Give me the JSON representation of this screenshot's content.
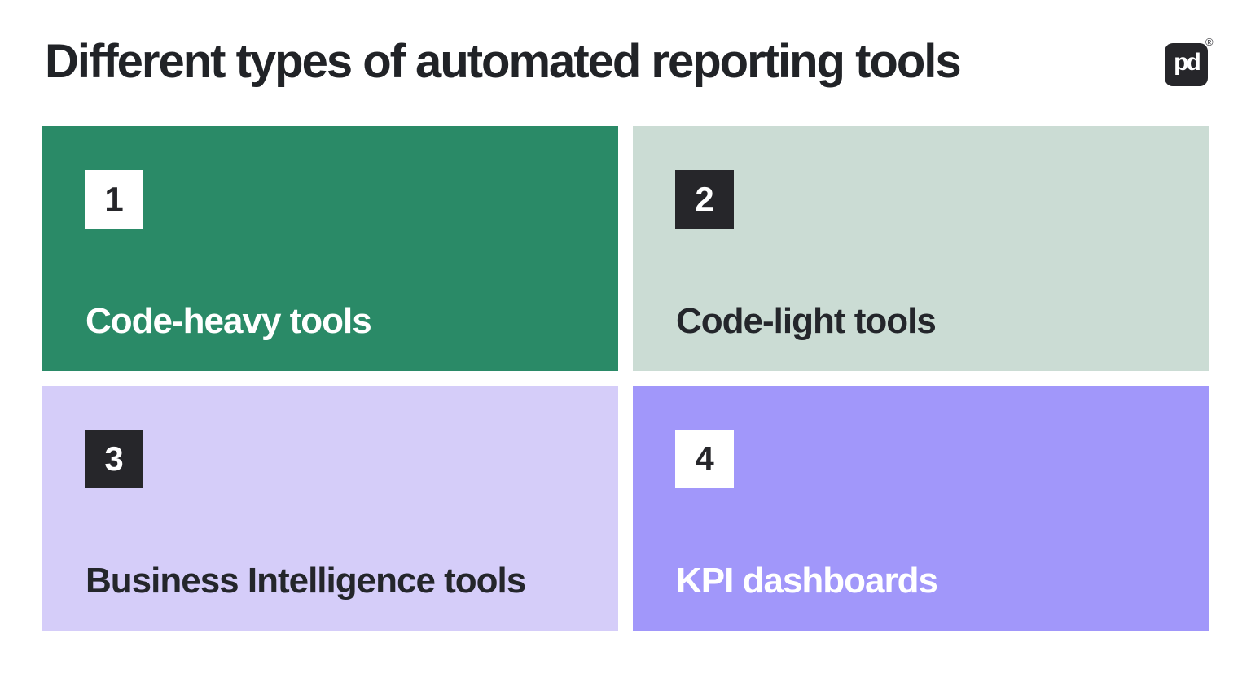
{
  "header": {
    "title": "Different types of automated reporting tools",
    "logo": {
      "monogram": "pd",
      "registered_mark": "®"
    }
  },
  "colors": {
    "background": "#ffffff",
    "title_text": "#212327",
    "logo_bg": "#26262a",
    "badge_dark": "#26262a",
    "badge_light": "#ffffff",
    "card_green": "#2a8a67",
    "card_sage": "#cbdcd4",
    "card_lavender": "#d5cdf9",
    "card_purple": "#a197fa"
  },
  "cards": [
    {
      "number": "1",
      "label": "Code-heavy tools",
      "bg": "#2a8a67",
      "text_color": "#ffffff",
      "badge_bg": "#ffffff",
      "badge_text": "#26262a"
    },
    {
      "number": "2",
      "label": "Code-light tools",
      "bg": "#cbdcd4",
      "text_color": "#24262b",
      "badge_bg": "#26262a",
      "badge_text": "#ffffff"
    },
    {
      "number": "3",
      "label": "Business Intelligence tools",
      "bg": "#d5cdf9",
      "text_color": "#24262b",
      "badge_bg": "#26262a",
      "badge_text": "#ffffff"
    },
    {
      "number": "4",
      "label": "KPI dashboards",
      "bg": "#a197fa",
      "text_color": "#ffffff",
      "badge_bg": "#ffffff",
      "badge_text": "#26262a"
    }
  ]
}
